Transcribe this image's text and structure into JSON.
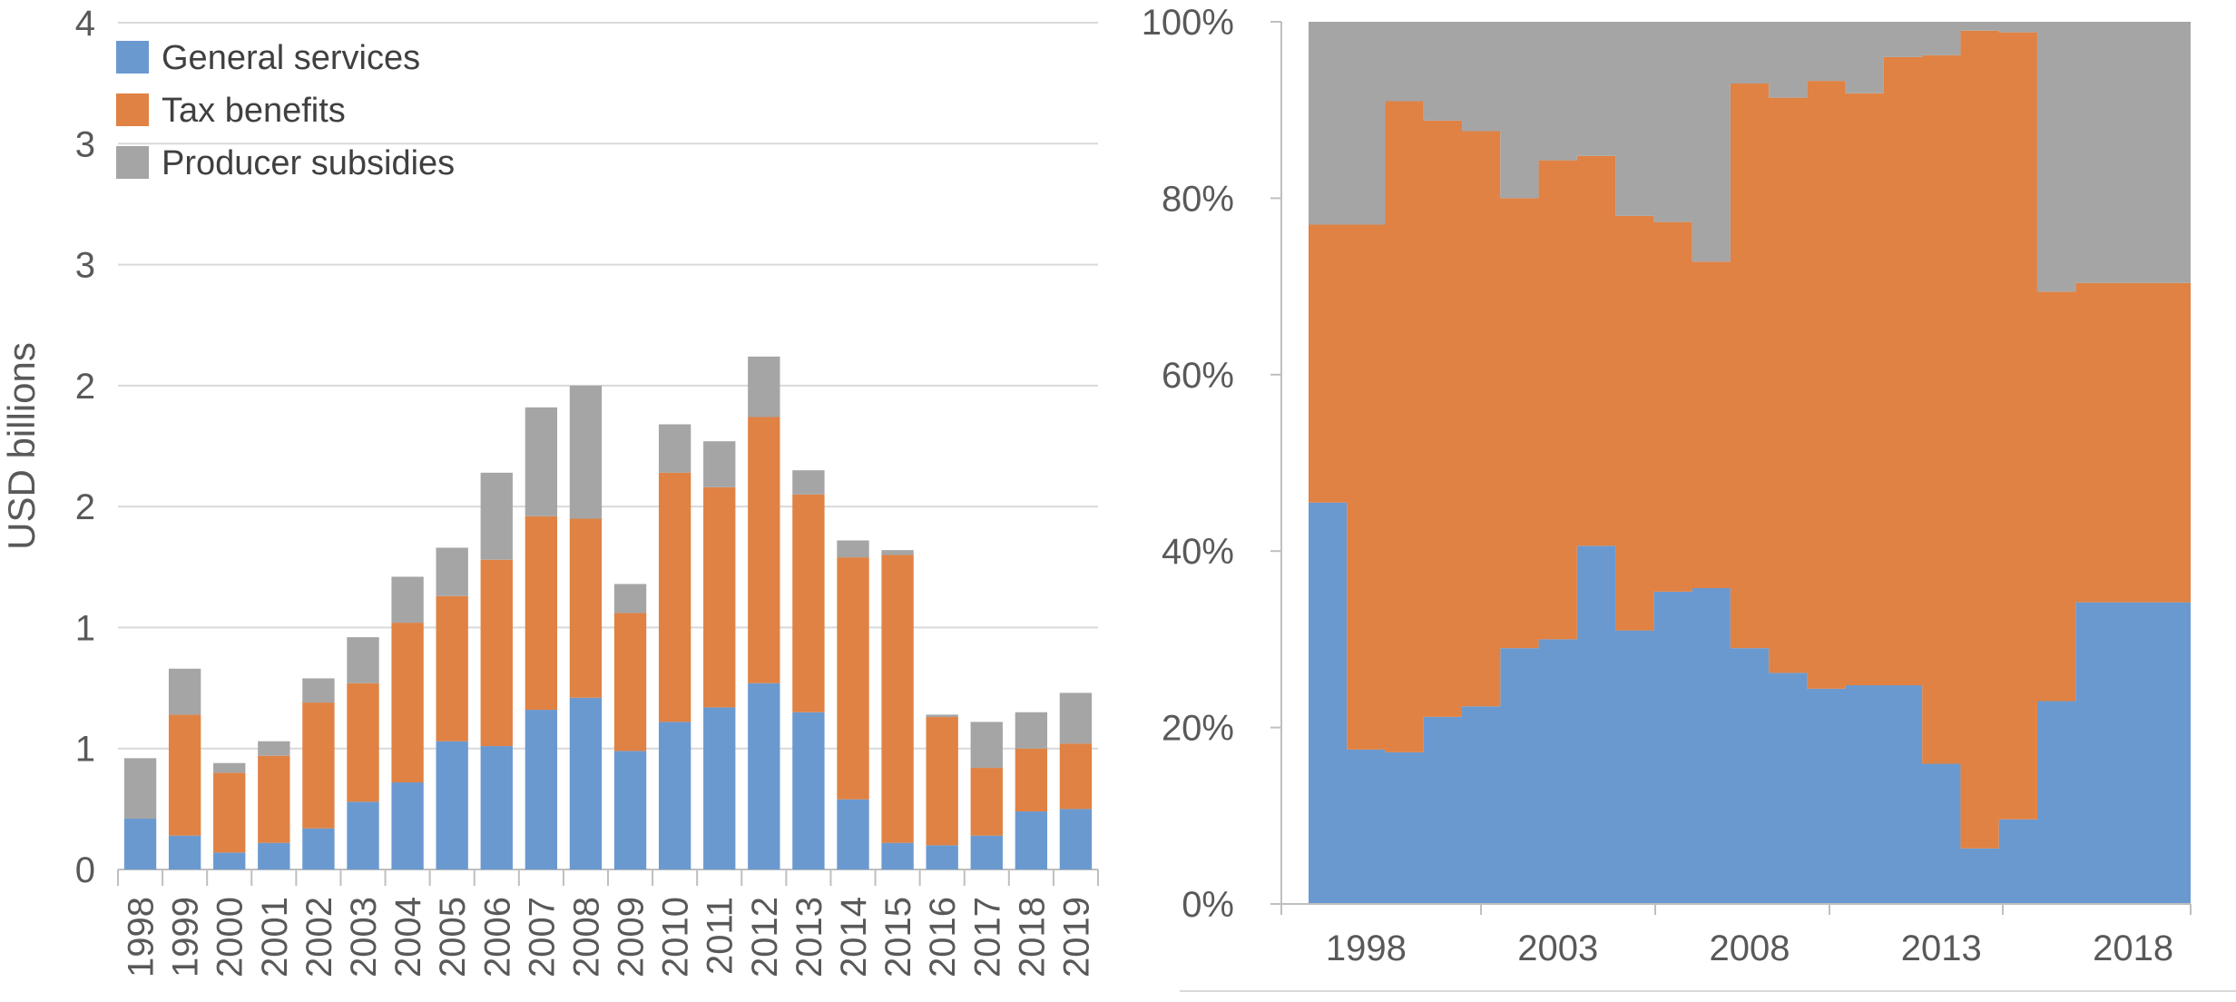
{
  "colors": {
    "general_services": "#6a99d0",
    "tax_benefits": "#df8244",
    "producer_subsidies": "#a5a5a5"
  },
  "chart_data": [
    {
      "type": "bar",
      "stacked": true,
      "ylabel": "USD billions",
      "yticks": [
        "0",
        "1",
        "1",
        "2",
        "2",
        "3",
        "3",
        "4"
      ],
      "ylim": [
        0,
        3.5
      ],
      "legend_position": "top-left",
      "grid": true,
      "categories": [
        "1998",
        "1999",
        "2000",
        "2001",
        "2002",
        "2003",
        "2004",
        "2005",
        "2006",
        "2007",
        "2008",
        "2009",
        "2010",
        "2011",
        "2012",
        "2013",
        "2014",
        "2015",
        "2016",
        "2017",
        "2018",
        "2019"
      ],
      "series": [
        {
          "name": "General services",
          "color": "general_services",
          "values": [
            0.21,
            0.14,
            0.07,
            0.11,
            0.17,
            0.28,
            0.36,
            0.53,
            0.51,
            0.66,
            0.71,
            0.49,
            0.61,
            0.67,
            0.77,
            0.65,
            0.29,
            0.11,
            0.1,
            0.14,
            0.24,
            0.25
          ]
        },
        {
          "name": "Tax benefits",
          "color": "tax_benefits",
          "values": [
            0,
            0.5,
            0.33,
            0.36,
            0.52,
            0.49,
            0.66,
            0.6,
            0.77,
            0.8,
            0.74,
            0.57,
            1.03,
            0.91,
            1.1,
            0.9,
            1.0,
            1.19,
            0.53,
            0.28,
            0.26,
            0.27
          ]
        },
        {
          "name": "Producer subsidies",
          "color": "producer_subsidies",
          "values": [
            0.25,
            0.19,
            0.04,
            0.06,
            0.1,
            0.19,
            0.19,
            0.2,
            0.36,
            0.45,
            0.55,
            0.12,
            0.2,
            0.19,
            0.25,
            0.1,
            0.07,
            0.02,
            0.01,
            0.19,
            0.15,
            0.21
          ]
        }
      ]
    },
    {
      "type": "area",
      "stacked_percent": true,
      "ylim": [
        0,
        100
      ],
      "yticks": [
        "0%",
        "20%",
        "40%",
        "60%",
        "80%",
        "100%"
      ],
      "xticks": [
        "1998",
        "2003",
        "2008",
        "2013",
        "2018"
      ],
      "grid": false,
      "x": [
        1997,
        1998,
        1999,
        2000,
        2001,
        2002,
        2003,
        2004,
        2005,
        2006,
        2007,
        2008,
        2009,
        2010,
        2011,
        2012,
        2013,
        2014,
        2015,
        2016,
        2017,
        2018,
        2019
      ],
      "series": [
        {
          "name": "General services",
          "color": "general_services",
          "values": [
            45.5,
            17.5,
            17.2,
            21.2,
            22.4,
            29.0,
            30.0,
            40.6,
            31.0,
            35.4,
            35.8,
            29.0,
            26.2,
            24.4,
            24.8,
            24.8,
            15.9,
            6.3,
            9.6,
            23.0,
            34.2,
            34.2,
            34.2
          ]
        },
        {
          "name": "Tax benefits",
          "color": "tax_benefits",
          "values": [
            31.5,
            59.5,
            73.8,
            67.6,
            65.2,
            51.0,
            54.3,
            44.2,
            47.0,
            41.9,
            37.0,
            64.0,
            65.2,
            68.9,
            67.1,
            71.2,
            80.3,
            92.7,
            89.2,
            46.4,
            36.2,
            36.2,
            36.2
          ]
        },
        {
          "name": "Producer subsidies",
          "color": "producer_subsidies",
          "values": [
            23.0,
            23.0,
            9.0,
            11.2,
            12.4,
            20.0,
            15.7,
            15.2,
            22.0,
            22.7,
            27.2,
            7.0,
            8.6,
            6.7,
            8.1,
            4.0,
            3.8,
            1.0,
            1.2,
            30.6,
            29.6,
            29.6,
            29.6
          ]
        }
      ]
    }
  ]
}
